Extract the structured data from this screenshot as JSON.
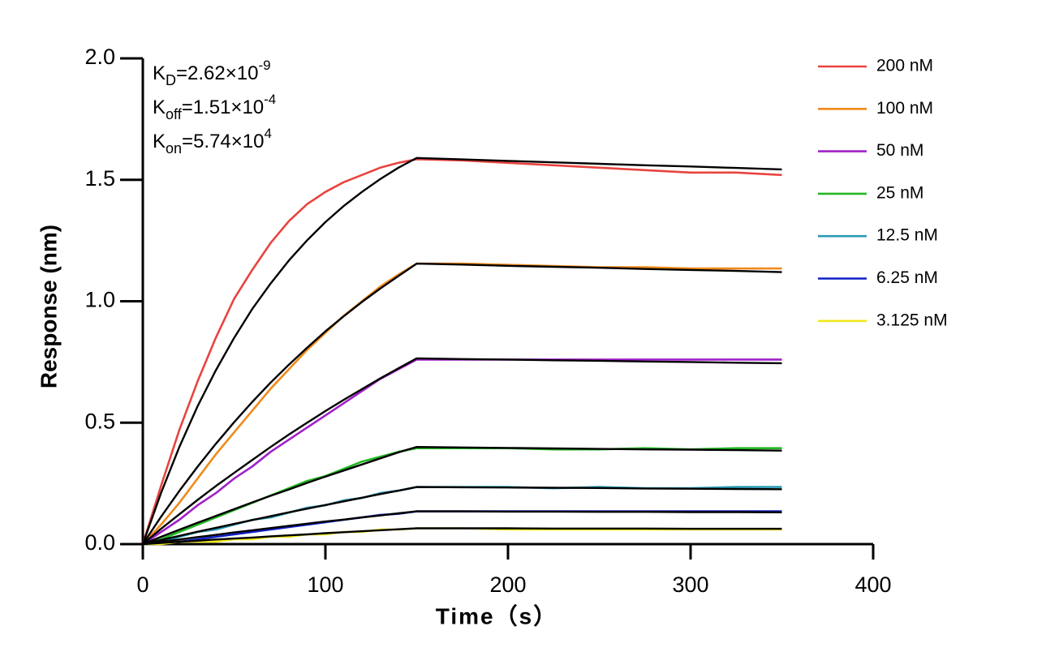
{
  "chart_data": {
    "type": "line",
    "xlabel": "Time（s）",
    "ylabel": "Response (nm)",
    "annotations": [
      {
        "symbol": "K",
        "subscript": "D",
        "text": "=2.62×10",
        "superscript": "-9"
      },
      {
        "symbol": "K",
        "subscript": "off",
        "text": "=1.51×10",
        "superscript": "-4"
      },
      {
        "symbol": "K",
        "subscript": "on",
        "text": "=5.74×10",
        "superscript": "4"
      }
    ],
    "xlim": [
      0,
      400
    ],
    "xticks": [
      0,
      100,
      200,
      300,
      400
    ],
    "ylim": [
      0,
      2
    ],
    "yticks": [
      {
        "value": 0,
        "label": "0.0"
      },
      0.5,
      {
        "value": 1,
        "label": "1.0"
      },
      1.5,
      {
        "value": 2,
        "label": "2.0"
      }
    ],
    "legend": "upper-right",
    "x": [
      0,
      10,
      20,
      30,
      40,
      50,
      60,
      70,
      80,
      90,
      100,
      110,
      120,
      130,
      140,
      150,
      175,
      200,
      225,
      250,
      275,
      300,
      325,
      350
    ],
    "series": [
      {
        "name": "200 nM",
        "color": "#e8443f",
        "values": [
          0,
          0.24,
          0.47,
          0.67,
          0.85,
          1.01,
          1.13,
          1.24,
          1.33,
          1.4,
          1.45,
          1.49,
          1.52,
          1.55,
          1.57,
          1.585,
          1.58,
          1.57,
          1.56,
          1.55,
          1.54,
          1.53,
          1.53,
          1.52
        ]
      },
      {
        "name": "100 nM",
        "color": "#f08a1a",
        "values": [
          0,
          0.08,
          0.17,
          0.27,
          0.37,
          0.46,
          0.55,
          0.64,
          0.72,
          0.8,
          0.87,
          0.94,
          1.0,
          1.06,
          1.11,
          1.155,
          1.155,
          1.15,
          1.145,
          1.14,
          1.14,
          1.135,
          1.135,
          1.135
        ]
      },
      {
        "name": "50 nM",
        "color": "#a020c8",
        "values": [
          0,
          0.05,
          0.1,
          0.16,
          0.21,
          0.27,
          0.32,
          0.38,
          0.43,
          0.48,
          0.53,
          0.58,
          0.63,
          0.68,
          0.72,
          0.76,
          0.76,
          0.76,
          0.76,
          0.76,
          0.76,
          0.76,
          0.76,
          0.76
        ]
      },
      {
        "name": "25 nM",
        "color": "#22b822",
        "values": [
          0,
          0.02,
          0.05,
          0.08,
          0.11,
          0.14,
          0.17,
          0.2,
          0.23,
          0.26,
          0.28,
          0.31,
          0.34,
          0.36,
          0.38,
          0.395,
          0.395,
          0.395,
          0.39,
          0.39,
          0.395,
          0.39,
          0.395,
          0.395
        ]
      },
      {
        "name": "12.5 nM",
        "color": "#2a9bb5",
        "values": [
          0,
          0.01,
          0.03,
          0.05,
          0.06,
          0.08,
          0.1,
          0.11,
          0.13,
          0.15,
          0.16,
          0.18,
          0.19,
          0.21,
          0.22,
          0.235,
          0.235,
          0.235,
          0.23,
          0.235,
          0.23,
          0.23,
          0.235,
          0.235
        ]
      },
      {
        "name": "6.25 nM",
        "color": "#1020c8",
        "values": [
          0,
          0,
          0.01,
          0.02,
          0.03,
          0.04,
          0.05,
          0.06,
          0.07,
          0.08,
          0.09,
          0.1,
          0.11,
          0.12,
          0.125,
          0.135,
          0.135,
          0.135,
          0.135,
          0.135,
          0.135,
          0.135,
          0.135,
          0.135
        ]
      },
      {
        "name": "3.125 nM",
        "color": "#f0e81a",
        "values": [
          0,
          0,
          0.01,
          0.01,
          0.01,
          0.02,
          0.02,
          0.03,
          0.03,
          0.04,
          0.04,
          0.05,
          0.05,
          0.06,
          0.06,
          0.065,
          0.065,
          0.06,
          0.06,
          0.06,
          0.06,
          0.06,
          0.06,
          0.06
        ]
      },
      {
        "color": "#000000",
        "values": [
          0,
          0.211,
          0.4,
          0.568,
          0.716,
          0.849,
          0.969,
          1.073,
          1.168,
          1.251,
          1.326,
          1.392,
          1.45,
          1.503,
          1.55,
          1.59,
          1.584,
          1.578,
          1.572,
          1.566,
          1.56,
          1.555,
          1.549,
          1.543
        ]
      },
      {
        "color": "#000000",
        "values": [
          0,
          0.113,
          0.219,
          0.319,
          0.413,
          0.502,
          0.586,
          0.665,
          0.739,
          0.809,
          0.876,
          0.938,
          0.997,
          1.052,
          1.104,
          1.155,
          1.151,
          1.146,
          1.142,
          1.138,
          1.133,
          1.129,
          1.125,
          1.12
        ]
      },
      {
        "color": "#000000",
        "values": [
          0,
          0.063,
          0.123,
          0.182,
          0.239,
          0.293,
          0.347,
          0.4,
          0.451,
          0.5,
          0.548,
          0.594,
          0.638,
          0.682,
          0.724,
          0.765,
          0.762,
          0.76,
          0.757,
          0.755,
          0.752,
          0.75,
          0.747,
          0.745
        ]
      },
      {
        "color": "#000000",
        "values": [
          0,
          0.03,
          0.059,
          0.088,
          0.116,
          0.144,
          0.172,
          0.199,
          0.225,
          0.252,
          0.278,
          0.303,
          0.328,
          0.353,
          0.378,
          0.4,
          0.398,
          0.396,
          0.394,
          0.392,
          0.39,
          0.389,
          0.387,
          0.385
        ]
      },
      {
        "color": "#000000",
        "values": [
          0,
          0.017,
          0.034,
          0.051,
          0.067,
          0.083,
          0.099,
          0.115,
          0.131,
          0.146,
          0.161,
          0.176,
          0.191,
          0.206,
          0.22,
          0.235,
          0.234,
          0.233,
          0.232,
          0.231,
          0.229,
          0.228,
          0.227,
          0.226
        ]
      },
      {
        "color": "#000000",
        "values": [
          0,
          0.01,
          0.019,
          0.029,
          0.038,
          0.048,
          0.057,
          0.066,
          0.075,
          0.084,
          0.093,
          0.101,
          0.11,
          0.118,
          0.127,
          0.135,
          0.135,
          0.134,
          0.134,
          0.133,
          0.133,
          0.132,
          0.132,
          0.131
        ]
      },
      {
        "color": "#000000",
        "values": [
          0,
          0.005,
          0.01,
          0.014,
          0.019,
          0.023,
          0.027,
          0.032,
          0.036,
          0.04,
          0.045,
          0.049,
          0.053,
          0.057,
          0.061,
          0.065,
          0.065,
          0.065,
          0.064,
          0.064,
          0.064,
          0.063,
          0.063,
          0.063
        ]
      }
    ]
  }
}
